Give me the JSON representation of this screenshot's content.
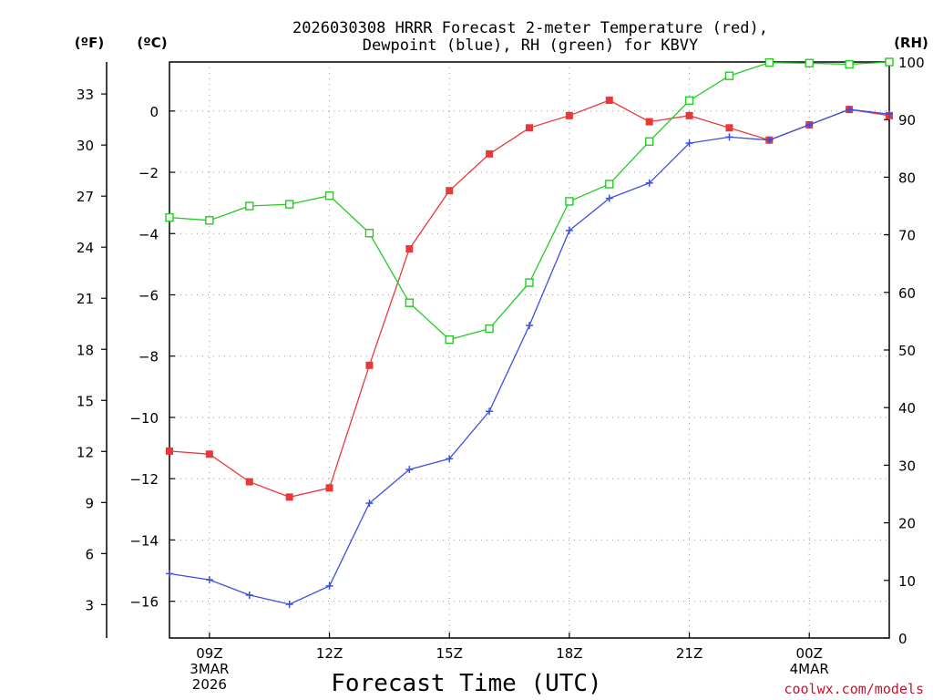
{
  "chart_data": {
    "type": "line",
    "title_lines": [
      "2026030308 HRRR Forecast 2-meter Temperature (red),",
      "Dewpoint (blue), RH (green) for KBVY"
    ],
    "xlabel": "Forecast Time (UTC)",
    "credit": "coolwx.com/models",
    "units": {
      "fahrenheit": "(ºF)",
      "celsius": "(ºC)",
      "rh": "(RH)"
    },
    "x_range": [
      8,
      26
    ],
    "x_ticks": [
      {
        "x": 9,
        "lines": [
          "09Z",
          "3MAR",
          "2026"
        ]
      },
      {
        "x": 12,
        "lines": [
          "12Z"
        ]
      },
      {
        "x": 15,
        "lines": [
          "15Z"
        ]
      },
      {
        "x": 18,
        "lines": [
          "18Z"
        ]
      },
      {
        "x": 21,
        "lines": [
          "21Z"
        ]
      },
      {
        "x": 24,
        "lines": [
          "00Z",
          "4MAR"
        ]
      }
    ],
    "celsius_axis": {
      "range": [
        -17.2,
        1.6
      ],
      "ticks": [
        "0",
        "−2",
        "−4",
        "−6",
        "−8",
        "−10",
        "−12",
        "−14",
        "−16"
      ],
      "tick_values": [
        0,
        -2,
        -4,
        -6,
        -8,
        -10,
        -12,
        -14,
        -16
      ]
    },
    "fahrenheit_axis": {
      "ticks": [
        "33",
        "30",
        "27",
        "24",
        "21",
        "18",
        "15",
        "12",
        "9",
        "6",
        "3"
      ],
      "tick_values": [
        33,
        30,
        27,
        24,
        21,
        18,
        15,
        12,
        9,
        6,
        3
      ]
    },
    "rh_axis": {
      "range": [
        0,
        100
      ],
      "ticks": [
        "100",
        "90",
        "80",
        "70",
        "60",
        "50",
        "40",
        "30",
        "20",
        "10",
        "0"
      ],
      "tick_values": [
        100,
        90,
        80,
        70,
        60,
        50,
        40,
        30,
        20,
        10,
        0
      ]
    },
    "x": [
      8,
      9,
      10,
      11,
      12,
      13,
      14,
      15,
      16,
      17,
      18,
      19,
      20,
      21,
      22,
      23,
      24,
      25,
      26
    ],
    "series": [
      {
        "name": "Temperature",
        "axis": "celsius",
        "color": "#e8393a",
        "marker": "filled-square",
        "values": [
          -11.1,
          -11.2,
          -12.1,
          -12.6,
          -12.3,
          -8.3,
          -4.5,
          -2.6,
          -1.4,
          -0.55,
          -0.15,
          0.35,
          -0.35,
          -0.15,
          -0.55,
          -0.95,
          -0.45,
          0.05,
          -0.15
        ]
      },
      {
        "name": "Dewpoint",
        "axis": "celsius",
        "color": "#3a4fe0",
        "marker": "plus",
        "values": [
          -15.1,
          -15.3,
          -15.8,
          -16.1,
          -15.5,
          -12.8,
          -11.7,
          -11.35,
          -9.8,
          -7.0,
          -3.9,
          -2.85,
          -2.35,
          -1.05,
          -0.85,
          -0.95,
          -0.45,
          0.05,
          -0.1
        ]
      },
      {
        "name": "RH",
        "axis": "rh",
        "color": "#22cc22",
        "marker": "open-square",
        "values": [
          73,
          72.5,
          75,
          75.3,
          76.8,
          70.3,
          58.2,
          51.8,
          53.7,
          61.7,
          75.8,
          78.8,
          86.2,
          93.3,
          97.6,
          99.9,
          99.8,
          99.6,
          100
        ]
      }
    ]
  }
}
